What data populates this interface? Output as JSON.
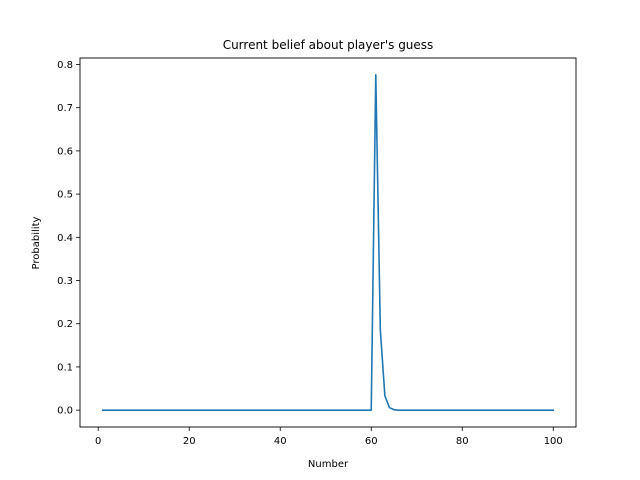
{
  "chart_data": {
    "type": "line",
    "title": "Current belief about player's guess",
    "xlabel": "Number",
    "ylabel": "Probability",
    "xlim": [
      -4,
      105
    ],
    "ylim": [
      -0.039,
      0.815
    ],
    "xticks": [
      0,
      20,
      40,
      60,
      80,
      100
    ],
    "yticks": [
      0.0,
      0.1,
      0.2,
      0.3,
      0.4,
      0.5,
      0.6,
      0.7,
      0.8
    ],
    "xtick_labels": [
      "0",
      "20",
      "40",
      "60",
      "80",
      "100"
    ],
    "ytick_labels": [
      "0.0",
      "0.1",
      "0.2",
      "0.3",
      "0.4",
      "0.5",
      "0.6",
      "0.7",
      "0.8"
    ],
    "grid": false,
    "series": [
      {
        "color": "#1f77b4",
        "points": [
          [
            1,
            0.0
          ],
          [
            60,
            0.0
          ],
          [
            61,
            0.776
          ],
          [
            62,
            0.185
          ],
          [
            63,
            0.033
          ],
          [
            64,
            0.006
          ],
          [
            65,
            0.001
          ],
          [
            66,
            0.0
          ],
          [
            100,
            0.0
          ]
        ]
      }
    ]
  }
}
